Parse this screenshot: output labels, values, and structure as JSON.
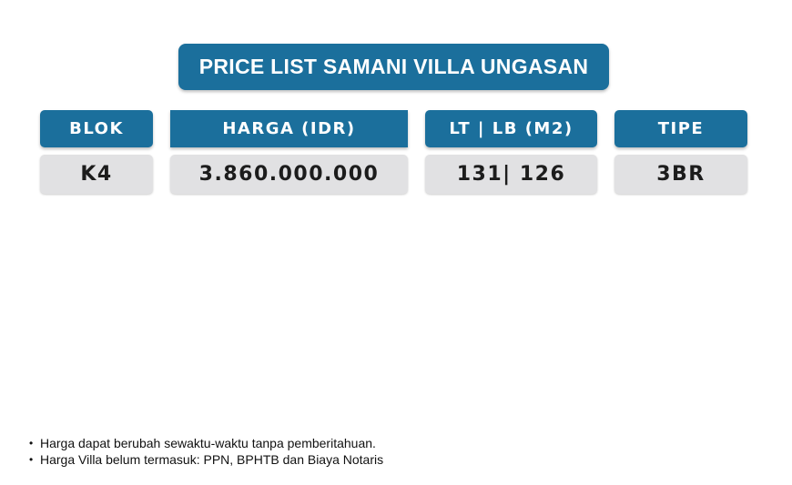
{
  "title": "PRICE LIST SAMANI VILLA UNGASAN",
  "table": {
    "headers": [
      "BLOK",
      "HARGA (IDR)",
      "LT | LB (M2)",
      "TIPE"
    ],
    "row": [
      "K4",
      "3.860.000.000",
      "131| 126",
      "3BR"
    ]
  },
  "notes": [
    "Harga dapat berubah sewaktu-waktu tanpa pemberitahuan.",
    "Harga Villa belum termasuk: PPN, BPHTB dan Biaya Notaris"
  ],
  "colors": {
    "header_bg": "#1b6f9c",
    "cell_bg": "#e1e1e3",
    "text_light": "#ffffff",
    "text_dark": "#1c1c1c"
  }
}
